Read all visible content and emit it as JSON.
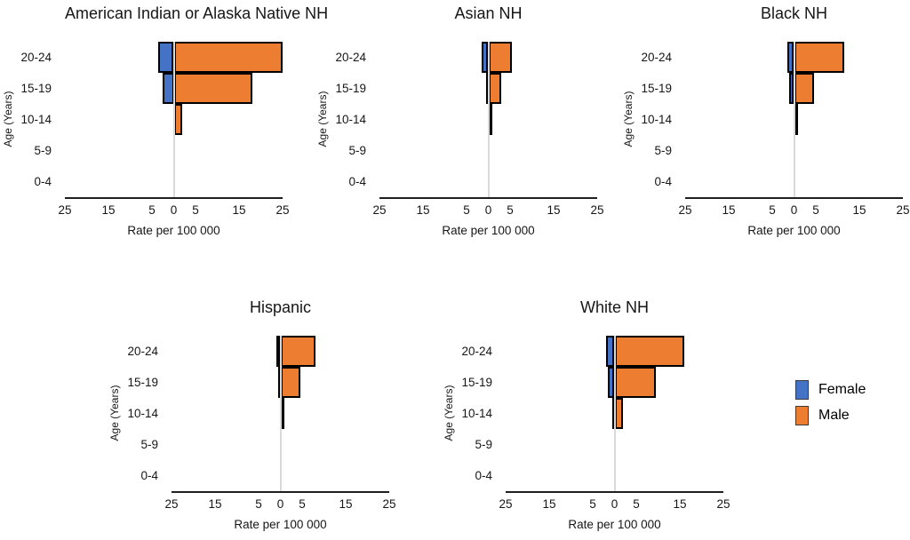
{
  "figure": {
    "background": "#ffffff"
  },
  "axis": {
    "xlabel": "Rate per 100 000",
    "ylabel": "Age (Years)",
    "ticks": [
      "25",
      "15",
      "5",
      "0",
      "5",
      "15",
      "25"
    ],
    "tick_values": [
      -25,
      -15,
      -5,
      0,
      5,
      15,
      25
    ],
    "xlim": [
      -25,
      25
    ]
  },
  "legend": {
    "items": [
      {
        "label": "Female",
        "color": "#4472C4"
      },
      {
        "label": "Male",
        "color": "#ED7D31"
      }
    ],
    "position": "bottom-right"
  },
  "colors": {
    "female": "#4472C4",
    "male": "#ED7D31",
    "bar_border": "#000000",
    "axis_line": "#1f1f1f",
    "zero_gridline": "#dadada"
  },
  "chart_data": [
    {
      "type": "bar",
      "subtype": "population-pyramid",
      "title": "American Indian or Alaska Native NH",
      "xlabel": "Rate per 100 000",
      "ylabel": "Age (Years)",
      "xlim": [
        -25,
        25
      ],
      "categories": [
        "20-24",
        "15-19",
        "10-14",
        "5-9",
        "0-4"
      ],
      "series": [
        {
          "name": "Female",
          "color": "#4472C4",
          "values": [
            3.5,
            2.5,
            0,
            0,
            0
          ]
        },
        {
          "name": "Male",
          "color": "#ED7D31",
          "values": [
            25,
            18,
            2,
            0,
            0
          ]
        }
      ]
    },
    {
      "type": "bar",
      "subtype": "population-pyramid",
      "title": "Asian NH",
      "xlabel": "Rate per 100 000",
      "ylabel": "Age (Years)",
      "xlim": [
        -25,
        25
      ],
      "categories": [
        "20-24",
        "15-19",
        "10-14",
        "5-9",
        "0-4"
      ],
      "series": [
        {
          "name": "Female",
          "color": "#4472C4",
          "values": [
            1.5,
            0.3,
            0,
            0,
            0
          ]
        },
        {
          "name": "Male",
          "color": "#ED7D31",
          "values": [
            5.5,
            3,
            0.5,
            0,
            0
          ]
        }
      ]
    },
    {
      "type": "bar",
      "subtype": "population-pyramid",
      "title": "Black NH",
      "xlabel": "Rate per 100 000",
      "ylabel": "Age (Years)",
      "xlim": [
        -25,
        25
      ],
      "categories": [
        "20-24",
        "15-19",
        "10-14",
        "5-9",
        "0-4"
      ],
      "series": [
        {
          "name": "Female",
          "color": "#4472C4",
          "values": [
            1.5,
            1.2,
            0,
            0,
            0
          ]
        },
        {
          "name": "Male",
          "color": "#ED7D31",
          "values": [
            11.5,
            4.5,
            1,
            0,
            0
          ]
        }
      ]
    },
    {
      "type": "bar",
      "subtype": "population-pyramid",
      "title": "Hispanic",
      "xlabel": "Rate per 100 000",
      "ylabel": "Age (Years)",
      "xlim": [
        -25,
        25
      ],
      "categories": [
        "20-24",
        "15-19",
        "10-14",
        "5-9",
        "0-4"
      ],
      "series": [
        {
          "name": "Female",
          "color": "#4472C4",
          "values": [
            1,
            0.5,
            0,
            0,
            0
          ]
        },
        {
          "name": "Male",
          "color": "#ED7D31",
          "values": [
            8,
            4.5,
            0.7,
            0,
            0
          ]
        }
      ]
    },
    {
      "type": "bar",
      "subtype": "population-pyramid",
      "title": "White NH",
      "xlabel": "Rate per 100 000",
      "ylabel": "Age (Years)",
      "xlim": [
        -25,
        25
      ],
      "categories": [
        "20-24",
        "15-19",
        "10-14",
        "5-9",
        "0-4"
      ],
      "series": [
        {
          "name": "Female",
          "color": "#4472C4",
          "values": [
            2,
            1.5,
            0.5,
            0,
            0
          ]
        },
        {
          "name": "Male",
          "color": "#ED7D31",
          "values": [
            16,
            9.5,
            2,
            0,
            0
          ]
        }
      ]
    }
  ]
}
